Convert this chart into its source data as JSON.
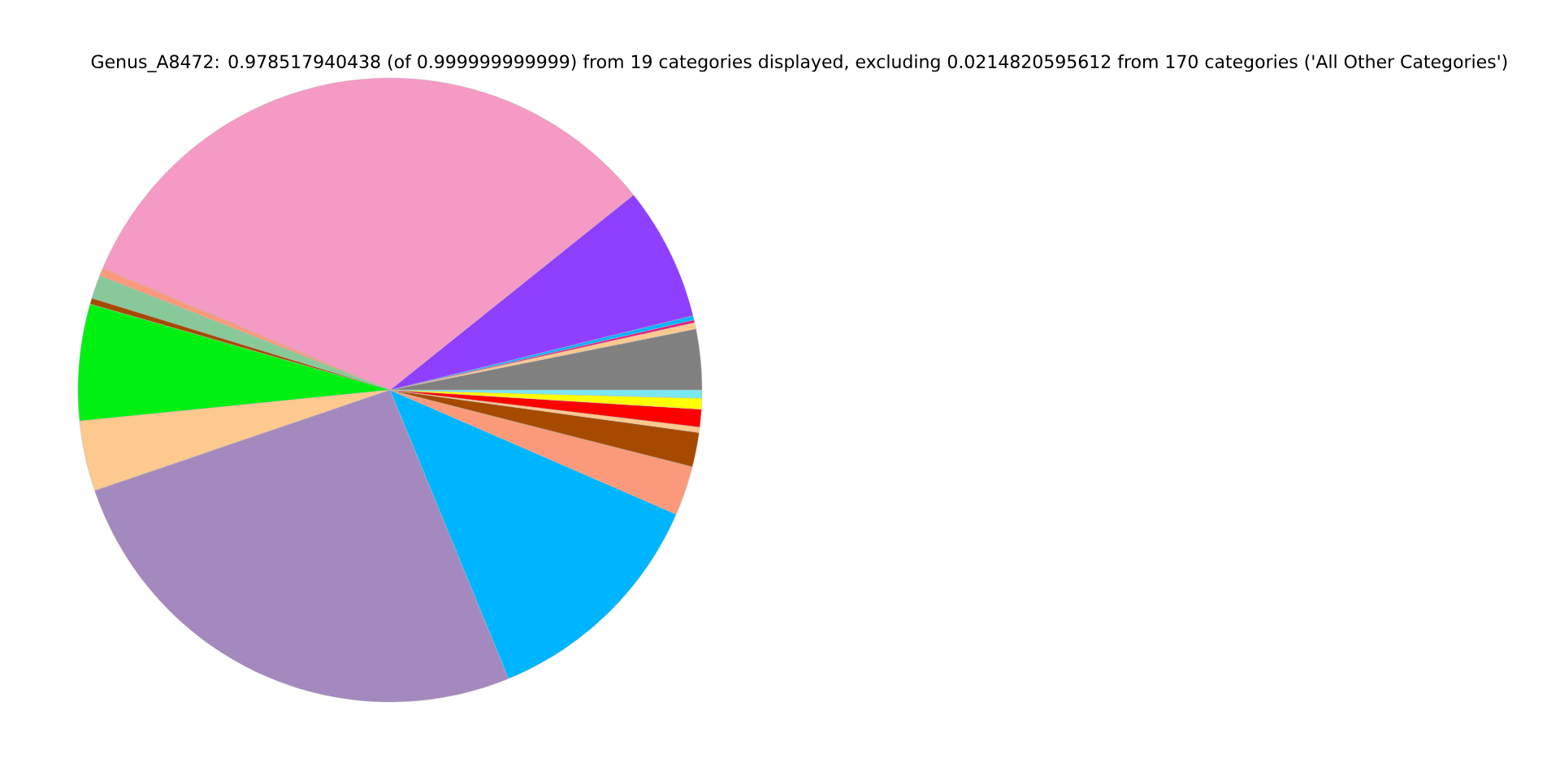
{
  "chart_data": {
    "type": "pie",
    "title": "Genus_A8472: 0.978517940438 (of 0.999999999999) from 19 categories displayed, excluding 0.0214820595612 from 170 categories ('All Other Categories')",
    "categories": [
      null,
      null,
      null,
      null,
      null,
      null,
      null,
      null,
      null,
      null,
      null,
      null,
      null,
      null,
      null,
      null,
      null,
      null,
      null
    ],
    "values": [
      3.14,
      0.33,
      0.14,
      0.22,
      6.92,
      32.86,
      0.42,
      1.22,
      0.31,
      6.03,
      3.64,
      25.97,
      12.28,
      2.56,
      1.78,
      0.28,
      0.92,
      0.56,
      0.42
    ],
    "colors": [
      "#808080",
      "#fdc98e",
      "#e8177a",
      "#00b4ff",
      "#8f3fff",
      "#f49ac5",
      "#fb9a7a",
      "#88c999",
      "#a64a00",
      "#00f012",
      "#fdc98e",
      "#a489bf",
      "#00b5ff",
      "#fb9a7a",
      "#a64a00",
      "#fdc98e",
      "#ff0000",
      "#ffff00",
      "#7ae8f0"
    ]
  }
}
